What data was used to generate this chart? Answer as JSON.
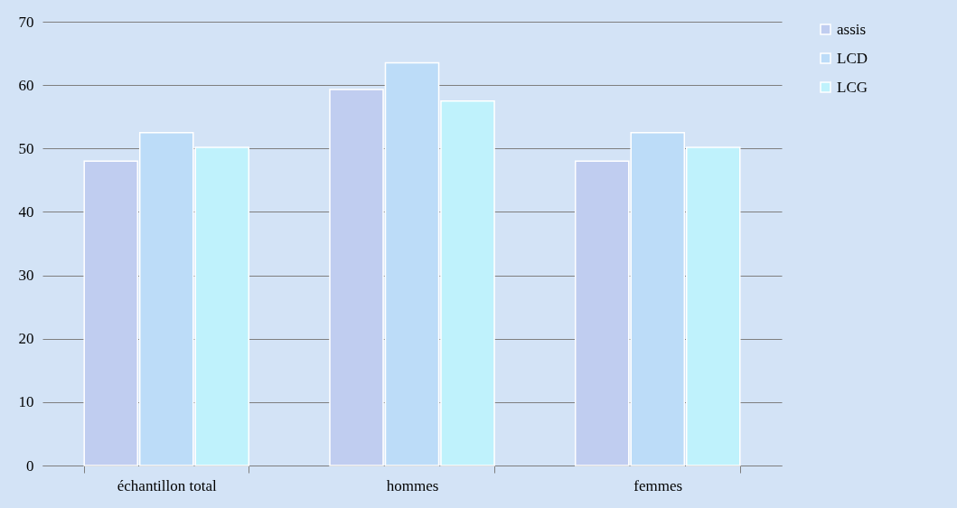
{
  "chart_data": {
    "type": "bar",
    "categories": [
      "échantillon total",
      "hommes",
      "femmes"
    ],
    "series": [
      {
        "name": "assis",
        "color": "#c0cdf0",
        "values": [
          48,
          59.3,
          48
        ]
      },
      {
        "name": "LCD",
        "color": "#bcdcf8",
        "values": [
          52.5,
          63.5,
          52.5
        ]
      },
      {
        "name": "LCG",
        "color": "#bff2fc",
        "values": [
          50.2,
          57.5,
          50.2
        ]
      }
    ],
    "ylim": [
      0,
      70
    ],
    "yticks": [
      0,
      10,
      20,
      30,
      40,
      50,
      60,
      70
    ],
    "grid": "y",
    "legend": "right"
  }
}
